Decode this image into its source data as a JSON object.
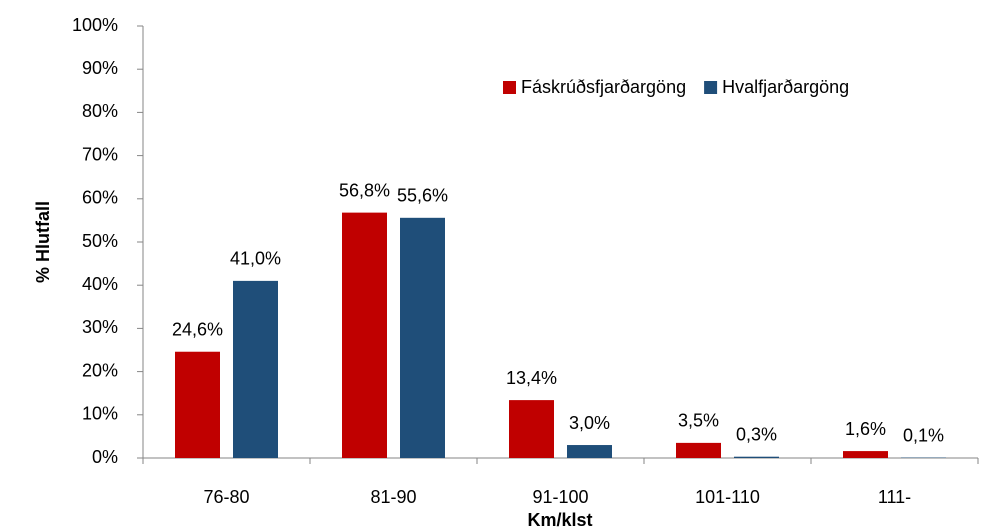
{
  "chart_data": {
    "type": "bar",
    "categories": [
      "76-80",
      "81-90",
      "91-100",
      "101-110",
      "111-"
    ],
    "series": [
      {
        "name": "Fáskrúðsfjarðargöng",
        "color": "#c00000",
        "values": [
          24.6,
          56.8,
          13.4,
          3.5,
          1.6
        ],
        "value_labels": [
          "24,6%",
          "56,8%",
          "13,4%",
          "3,5%",
          "1,6%"
        ]
      },
      {
        "name": "Hvalfjarðargöng",
        "color": "#1f4e79",
        "values": [
          41.0,
          55.6,
          3.0,
          0.3,
          0.1
        ],
        "value_labels": [
          "41,0%",
          "55,6%",
          "3,0%",
          "0,3%",
          "0,1%"
        ]
      }
    ],
    "ylim": [
      0,
      100
    ],
    "yticks": [
      {
        "value": 0,
        "label": "0%"
      },
      {
        "value": 10,
        "label": "10%"
      },
      {
        "value": 20,
        "label": "20%"
      },
      {
        "value": 30,
        "label": "30%"
      },
      {
        "value": 40,
        "label": "40%"
      },
      {
        "value": 50,
        "label": "50%"
      },
      {
        "value": 60,
        "label": "60%"
      },
      {
        "value": 70,
        "label": "70%"
      },
      {
        "value": 80,
        "label": "80%"
      },
      {
        "value": 90,
        "label": "90%"
      },
      {
        "value": 100,
        "label": "100%"
      }
    ],
    "y_label": "% Hlutfall",
    "x_label": "Km/klst",
    "legend": "upper right",
    "grid": false
  }
}
